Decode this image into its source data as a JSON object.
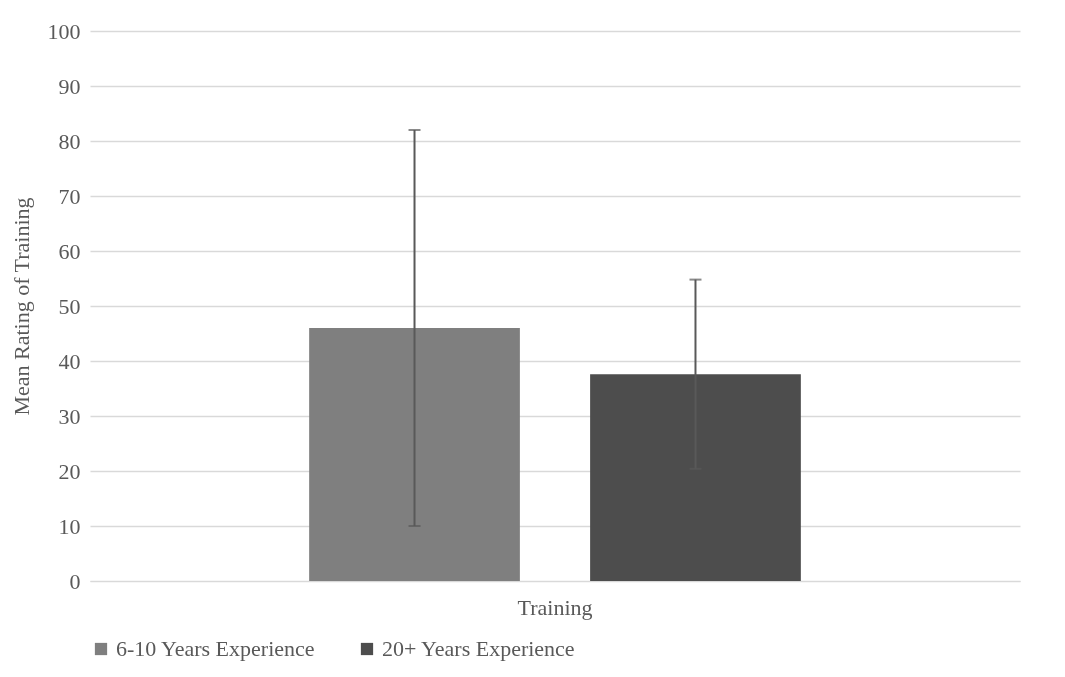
{
  "chart_data": {
    "type": "bar",
    "ylabel": "Mean Rating of Training",
    "categories": [
      "Training"
    ],
    "series": [
      {
        "name": "6-10 Years Experience",
        "color": "#7f7f7f",
        "values": [
          46
        ],
        "errors": [
          36
        ]
      },
      {
        "name": "20+ Years Experience",
        "color": "#4d4d4d",
        "values": [
          37.6
        ],
        "errors": [
          17.2
        ]
      }
    ],
    "ylim": [
      0,
      100
    ],
    "yticks": [
      0,
      10,
      20,
      30,
      40,
      50,
      60,
      70,
      80,
      90,
      100
    ],
    "grid": "y",
    "legend": "bottom"
  }
}
